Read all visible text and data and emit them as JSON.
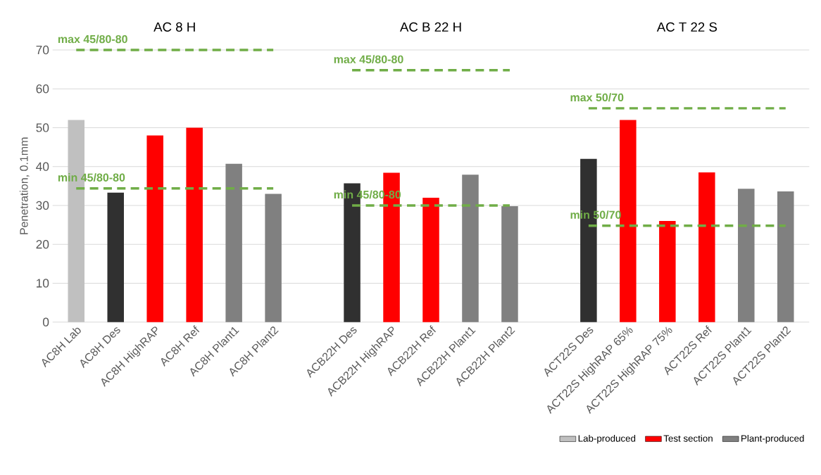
{
  "chart_data": {
    "type": "bar",
    "ylabel": "Penetration, 0.1mm",
    "annotations": [
      "AC 8 H",
      "AC B 22 H",
      "AC T 22 S"
    ],
    "categories": [
      "AC8H Lab",
      "AC8H Des",
      "AC8H HighRAP",
      "AC8H Ref",
      "AC8H Plant1",
      "AC8H Plant2",
      null,
      "ACB22H Des",
      "ACB22H HighRAP",
      "ACB22H Ref",
      "ACB22H Plant1",
      "ACB22H Plant2",
      null,
      "ACT22S Des",
      "ACT22S HighRAP 65%",
      "ACT22S HighRAP 75%",
      "ACT22S Ref",
      "ACT22S Plant1",
      "ACT22S Plant2"
    ],
    "series": [
      {
        "name": "Lab-produced",
        "color": "#c0c0c0",
        "colors": [
          "#c0c0c0",
          "#303030",
          null,
          null,
          null,
          null,
          null,
          "#303030",
          null,
          null,
          null,
          null,
          null,
          "#303030",
          null,
          null,
          null,
          null,
          null
        ],
        "values": [
          52,
          33.3,
          null,
          null,
          null,
          null,
          null,
          35.7,
          null,
          null,
          null,
          null,
          null,
          42,
          null,
          null,
          null,
          null,
          null
        ]
      },
      {
        "name": "Test section",
        "color": "#ff0000",
        "values": [
          null,
          null,
          48,
          50,
          null,
          null,
          null,
          null,
          38.4,
          32,
          null,
          null,
          null,
          null,
          52,
          26,
          38.5,
          null,
          null
        ]
      },
      {
        "name": "Plant-produced",
        "color": "#808080",
        "values": [
          null,
          null,
          null,
          null,
          40.7,
          33,
          null,
          null,
          null,
          null,
          37.9,
          29.8,
          null,
          null,
          null,
          null,
          null,
          34.3,
          33.6
        ]
      },
      {
        "type": "line",
        "name": "max 45/80-80",
        "color": "#70ad47",
        "line_style": "dashed",
        "marker": "none",
        "values": [
          70,
          70,
          70,
          70,
          70,
          70,
          null,
          null,
          null,
          null,
          null,
          null,
          null,
          null,
          null,
          null,
          null,
          null,
          null
        ]
      },
      {
        "type": "line",
        "name": "min 45/80-80",
        "color": "#70ad47",
        "line_style": "dashed",
        "marker": "none",
        "values": [
          34.4,
          34.4,
          34.4,
          34.4,
          34.4,
          34.4,
          null,
          null,
          null,
          null,
          null,
          null,
          null,
          null,
          null,
          null,
          null,
          null,
          null
        ]
      },
      {
        "type": "line",
        "name": "max 45/80-80",
        "color": "#70ad47",
        "line_style": "dashed",
        "marker": "none",
        "values": [
          null,
          null,
          null,
          null,
          null,
          null,
          null,
          64.8,
          64.8,
          64.8,
          64.8,
          64.8,
          null,
          null,
          null,
          null,
          null,
          null,
          null
        ]
      },
      {
        "type": "line",
        "name": "min 45/80-80",
        "color": "#70ad47",
        "line_style": "dashed",
        "marker": "none",
        "values": [
          null,
          null,
          null,
          null,
          null,
          null,
          null,
          30,
          30,
          30,
          30,
          30,
          null,
          null,
          null,
          null,
          null,
          null,
          null
        ]
      },
      {
        "type": "line",
        "name": "max 50/70",
        "color": "#70ad47",
        "line_style": "dashed",
        "marker": "none",
        "values": [
          null,
          null,
          null,
          null,
          null,
          null,
          null,
          null,
          null,
          null,
          null,
          null,
          null,
          55,
          55,
          55,
          55,
          55,
          55
        ]
      },
      {
        "type": "line",
        "name": "min 50/70",
        "color": "#70ad47",
        "line_style": "dashed",
        "marker": "none",
        "values": [
          null,
          null,
          null,
          null,
          null,
          null,
          null,
          null,
          null,
          null,
          null,
          null,
          null,
          24.8,
          24.8,
          24.8,
          24.8,
          24.8,
          24.8
        ]
      }
    ],
    "ylim": [
      0,
      70
    ],
    "yticks": [
      0,
      10,
      20,
      30,
      40,
      50,
      60,
      70
    ],
    "grid": "y",
    "legend": "bottom right"
  }
}
